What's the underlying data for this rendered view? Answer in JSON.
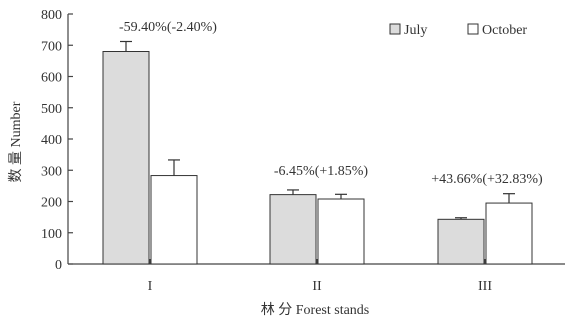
{
  "chart_data": {
    "type": "bar",
    "categories": [
      "I",
      "II",
      "III"
    ],
    "series": [
      {
        "name": "July",
        "values": [
          680,
          222,
          143
        ],
        "errors": [
          32,
          15,
          5
        ],
        "color": "#dcdcdc"
      },
      {
        "name": "October",
        "values": [
          283,
          208,
          195
        ],
        "errors": [
          50,
          15,
          30
        ],
        "color": "#ffffff"
      }
    ],
    "ylim": [
      0,
      800
    ],
    "yticks": [
      0,
      100,
      200,
      300,
      400,
      500,
      600,
      700,
      800
    ],
    "ylabel": "数 量  Number",
    "xlabel": "林 分  Forest stands",
    "annotations": [
      "-59.40%(-2.40%)",
      "-6.45%(+1.85%)",
      "+43.66%(+32.83%)"
    ],
    "legend_position": "top-right",
    "grid": false
  }
}
